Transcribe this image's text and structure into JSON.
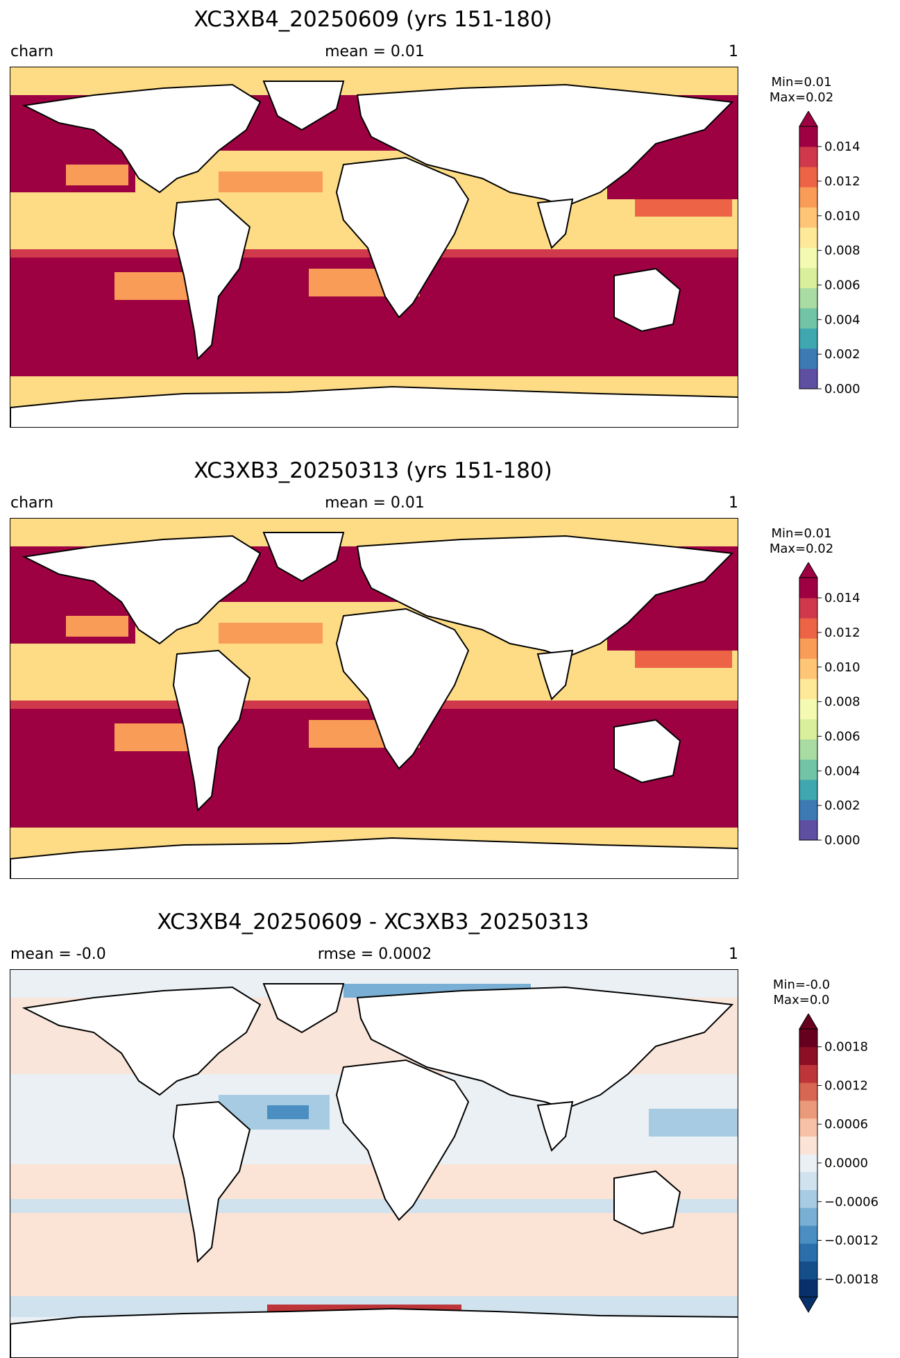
{
  "panels": [
    {
      "title": "XC3XB4_20250609 (yrs 151-180)",
      "left": "charn",
      "center": "mean = 0.01",
      "right": "1",
      "min": "Min=0.01",
      "max": "Max=0.02",
      "colorbar": {
        "colors": [
          "#5e4fa2",
          "#3d7ab4",
          "#3ea7b0",
          "#71c4a6",
          "#a8dca3",
          "#d9ef9b",
          "#f5fab3",
          "#fee999",
          "#fdc575",
          "#f99c57",
          "#ec6445",
          "#d0394b",
          "#9e0142"
        ],
        "ticks": [
          "0.000",
          "0.002",
          "0.004",
          "0.006",
          "0.008",
          "0.010",
          "0.012",
          "0.014"
        ],
        "extend": "max"
      }
    },
    {
      "title": "XC3XB3_20250313 (yrs 151-180)",
      "left": "charn",
      "center": "mean = 0.01",
      "right": "1",
      "min": "Min=0.01",
      "max": "Max=0.02",
      "colorbar": {
        "colors": [
          "#5e4fa2",
          "#3d7ab4",
          "#3ea7b0",
          "#71c4a6",
          "#a8dca3",
          "#d9ef9b",
          "#f5fab3",
          "#fee999",
          "#fdc575",
          "#f99c57",
          "#ec6445",
          "#d0394b",
          "#9e0142"
        ],
        "ticks": [
          "0.000",
          "0.002",
          "0.004",
          "0.006",
          "0.008",
          "0.010",
          "0.012",
          "0.014"
        ],
        "extend": "max"
      }
    },
    {
      "title": "XC3XB4_20250609 - XC3XB3_20250313",
      "left": "mean = -0.0",
      "center": "rmse = 0.0002",
      "right": "1",
      "min": "Min=-0.0",
      "max": "Max=0.0",
      "colorbar": {
        "colors": [
          "#08306b",
          "#154f8a",
          "#2a6fab",
          "#4a8ec2",
          "#79afd4",
          "#a7cbe3",
          "#cfe2ee",
          "#eaf0f4",
          "#fbe3d6",
          "#f6c1a6",
          "#ea9a7a",
          "#d76652",
          "#bd3538",
          "#8c0f24",
          "#67001f"
        ],
        "ticks": [
          "−0.0018",
          "−0.0012",
          "−0.0006",
          "0.0000",
          "0.0006",
          "0.0012",
          "0.0018"
        ],
        "extend": "both"
      }
    }
  ],
  "map_colors": {
    "high": "#9e0142",
    "mid_high": "#d0394b",
    "mid": "#f99c57",
    "low": "#fddc85",
    "diff_bg": "#eaf0f4",
    "diff_pos": "#fbe3d6",
    "diff_neg": "#cfe2ee",
    "diff_strong_pos": "#bd3538",
    "diff_strong_neg": "#2a6fab"
  }
}
